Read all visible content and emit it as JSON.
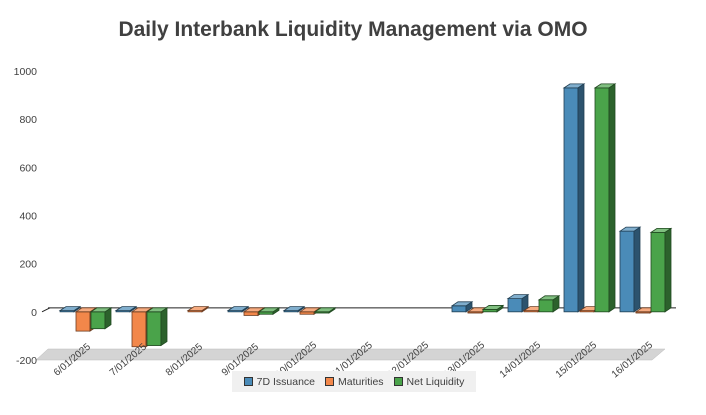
{
  "chart_data": {
    "type": "bar",
    "title": "Daily Interbank Liquidity Management via OMO",
    "categories": [
      "6/01/2025",
      "7/01/2025",
      "8/01/2025",
      "9/01/2025",
      "10/01/2025",
      "11/01/2025",
      "12/01/2025",
      "13/01/2025",
      "14/01/2025",
      "15/01/2025",
      "16/01/2025"
    ],
    "series": [
      {
        "name": "7D Issuance",
        "color": "#4a8bb8",
        "values": [
          5,
          5,
          0,
          5,
          5,
          0,
          0,
          25,
          55,
          930,
          335
        ]
      },
      {
        "name": "Maturities",
        "color": "#f2874a",
        "values": [
          -80,
          -145,
          5,
          -15,
          -10,
          0,
          0,
          -5,
          5,
          5,
          -5
        ]
      },
      {
        "name": "Net Liquidity",
        "color": "#4aa34a",
        "values": [
          -70,
          -140,
          0,
          -10,
          -5,
          0,
          0,
          10,
          50,
          930,
          330
        ]
      }
    ],
    "ylim": [
      -200,
      1000
    ],
    "yticks": [
      1000,
      800,
      600,
      400,
      200,
      0,
      -200
    ],
    "legend_position": "bottom"
  }
}
